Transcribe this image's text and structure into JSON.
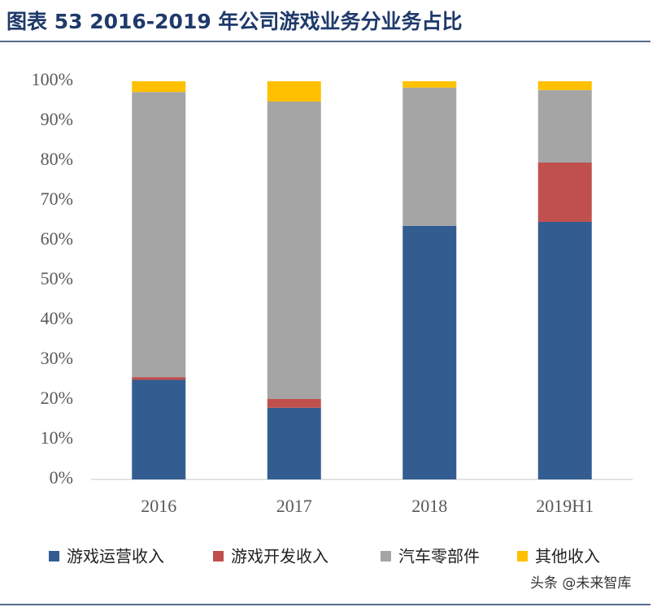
{
  "chart_data": {
    "type": "stacked_bar",
    "title": "图表 53 2016-2019 年公司游戏业务分业务占比",
    "watermark": "头条 @未来智库",
    "categories": [
      "2016",
      "2017",
      "2018",
      "2019H1"
    ],
    "series": [
      {
        "name": "游戏运营收入",
        "color": "#335d91",
        "values": [
          25,
          18,
          63.7,
          64.7
        ]
      },
      {
        "name": "游戏开发收入",
        "color": "#c0504d",
        "values": [
          0.7,
          2.2,
          0,
          14.9
        ]
      },
      {
        "name": "汽车零部件",
        "color": "#a5a5a5",
        "values": [
          71.6,
          74.7,
          34.7,
          18.2
        ]
      },
      {
        "name": "其他收入",
        "color": "#ffc000",
        "values": [
          2.7,
          5.1,
          1.6,
          2.2
        ]
      }
    ],
    "ylim": [
      0,
      100
    ],
    "yticks": [
      {
        "value": 0,
        "label": "0%"
      },
      {
        "value": 10,
        "label": "10%"
      },
      {
        "value": 20,
        "label": "20%"
      },
      {
        "value": 30,
        "label": "30%"
      },
      {
        "value": 40,
        "label": "40%"
      },
      {
        "value": 50,
        "label": "50%"
      },
      {
        "value": 60,
        "label": "60%"
      },
      {
        "value": 70,
        "label": "70%"
      },
      {
        "value": 80,
        "label": "80%"
      },
      {
        "value": 90,
        "label": "90%"
      },
      {
        "value": 100,
        "label": "100%"
      }
    ],
    "legend": "bottom"
  }
}
